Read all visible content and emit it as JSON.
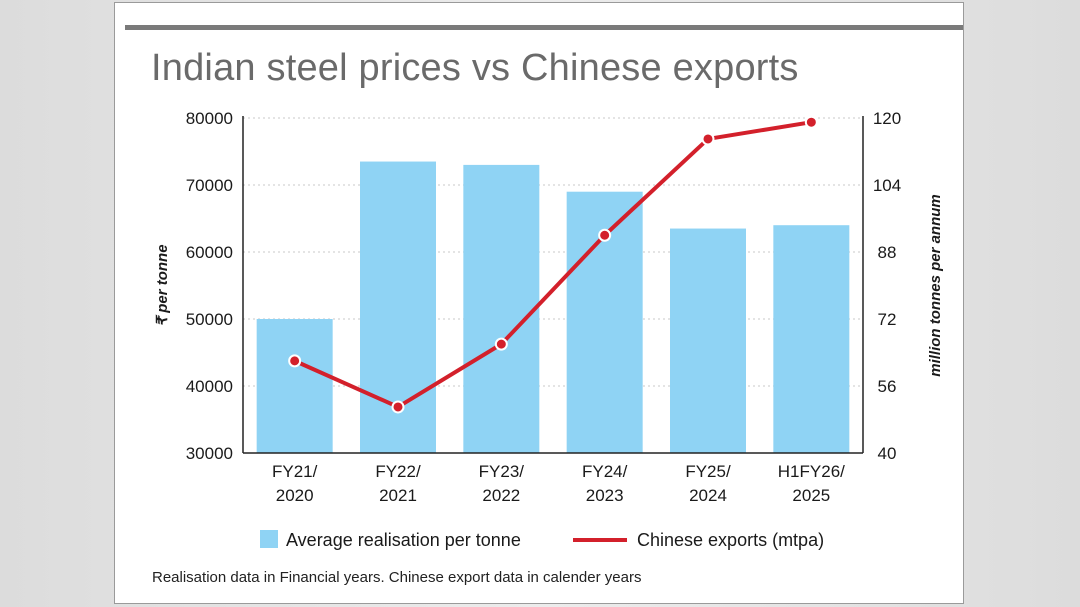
{
  "chart_data": {
    "type": "bar+line",
    "title": "Indian steel prices vs Chinese exports",
    "categories": [
      [
        "FY21/",
        "2020"
      ],
      [
        "FY22/",
        "2021"
      ],
      [
        "FY23/",
        "2022"
      ],
      [
        "FY24/",
        "2023"
      ],
      [
        "FY25/",
        "2024"
      ],
      [
        "H1FY26/",
        "2025"
      ]
    ],
    "series": [
      {
        "name": "Average realisation per tonne",
        "type": "bar",
        "axis": "left",
        "color": "#8fd3f4",
        "values": [
          50000,
          73500,
          73000,
          69000,
          63500,
          64000
        ]
      },
      {
        "name": "Chinese exports (mtpa)",
        "type": "line",
        "axis": "right",
        "color": "#d3202b",
        "values": [
          62,
          51,
          66,
          92,
          115,
          119
        ]
      }
    ],
    "ylabel_left": "₹ per tonne",
    "ylabel_right": "million tonnes per annum",
    "ylim_left": [
      30000,
      80000
    ],
    "yticks_left": [
      "80000",
      "70000",
      "60000",
      "50000",
      "40000",
      "30000"
    ],
    "ylim_right": [
      40,
      120
    ],
    "yticks_right": [
      "120",
      "104",
      "88",
      "72",
      "56",
      "40"
    ],
    "legend": [
      "Average realisation per tonne",
      "Chinese exports (mtpa)"
    ],
    "legend_position": "bottom",
    "grid": true,
    "footnote": "Realisation data in Financial years. Chinese export data in calender years"
  }
}
